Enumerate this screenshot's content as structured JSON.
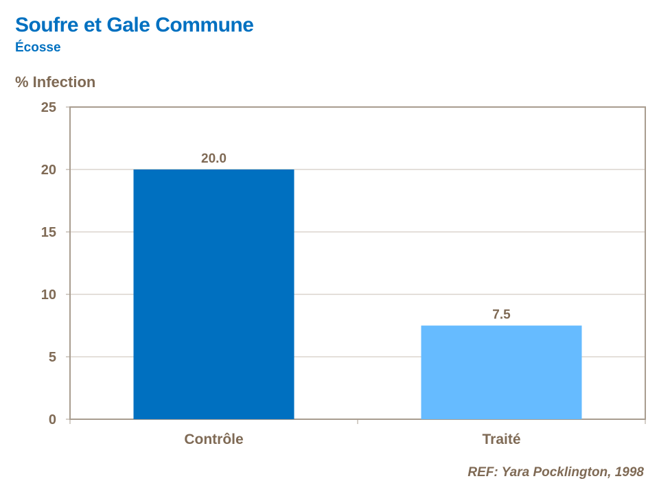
{
  "chart_data": {
    "type": "bar",
    "title": "Soufre et Gale Commune",
    "subtitle": "Écosse",
    "ylabel": "% Infection",
    "xlabel": "",
    "categories": [
      "Contrôle",
      "Traité"
    ],
    "values": [
      20.0,
      7.5
    ],
    "data_labels": [
      "20.0",
      "7.5"
    ],
    "colors": [
      "#0070C0",
      "#66BBFF"
    ],
    "ylim": [
      0,
      25
    ],
    "yticks": [
      0,
      5,
      10,
      15,
      20,
      25
    ],
    "grid": true
  },
  "footer": {
    "ref": "REF: Yara Pocklington, 1998"
  }
}
